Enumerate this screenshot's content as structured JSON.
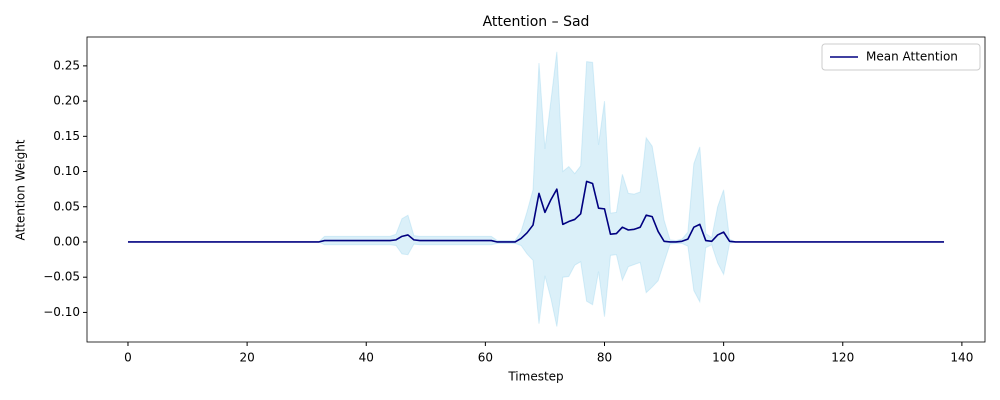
{
  "chart_data": {
    "type": "line",
    "title": "Attention – Sad",
    "x_label": "Timestep",
    "y_label": "Attention Weight",
    "x": [
      0,
      1,
      2,
      3,
      4,
      5,
      6,
      7,
      8,
      9,
      10,
      11,
      12,
      13,
      14,
      15,
      16,
      17,
      18,
      19,
      20,
      21,
      22,
      23,
      24,
      25,
      26,
      27,
      28,
      29,
      30,
      31,
      32,
      33,
      34,
      35,
      36,
      37,
      38,
      39,
      40,
      41,
      42,
      43,
      44,
      45,
      46,
      47,
      48,
      49,
      50,
      51,
      52,
      53,
      54,
      55,
      56,
      57,
      58,
      59,
      60,
      61,
      62,
      63,
      64,
      65,
      66,
      67,
      68,
      69,
      70,
      71,
      72,
      73,
      74,
      75,
      76,
      77,
      78,
      79,
      80,
      81,
      82,
      83,
      84,
      85,
      86,
      87,
      88,
      89,
      90,
      91,
      92,
      93,
      94,
      95,
      96,
      97,
      98,
      99,
      100,
      101,
      102,
      103,
      104,
      105,
      106,
      107,
      108,
      109,
      110,
      111,
      112,
      113,
      114,
      115,
      116,
      117,
      118,
      119,
      120,
      121,
      122,
      123,
      124,
      125,
      126,
      127,
      128,
      129,
      130,
      131,
      132,
      133,
      134,
      135,
      136,
      137
    ],
    "series": [
      {
        "name": "Mean Attention",
        "color": "#000080",
        "values": [
          0,
          0,
          0,
          0,
          0,
          0,
          0,
          0,
          0,
          0,
          0,
          0,
          0,
          0,
          0,
          0,
          0,
          0,
          0,
          0,
          0,
          0,
          0,
          0,
          0,
          0,
          0,
          0,
          0,
          0,
          0,
          0,
          0,
          0.002,
          0.002,
          0.002,
          0.002,
          0.002,
          0.002,
          0.002,
          0.002,
          0.002,
          0.002,
          0.002,
          0.002,
          0.003,
          0.008,
          0.01,
          0.003,
          0.002,
          0.002,
          0.002,
          0.002,
          0.002,
          0.002,
          0.002,
          0.002,
          0.002,
          0.002,
          0.002,
          0.002,
          0.002,
          0,
          0,
          0,
          0,
          0.005,
          0.013,
          0.024,
          0.069,
          0.042,
          0.06,
          0.075,
          0.025,
          0.029,
          0.032,
          0.04,
          0.086,
          0.083,
          0.048,
          0.047,
          0.011,
          0.012,
          0.021,
          0.017,
          0.018,
          0.021,
          0.038,
          0.036,
          0.015,
          0.001,
          0,
          0,
          0.001,
          0.004,
          0.021,
          0.025,
          0.002,
          0.001,
          0.01,
          0.014,
          0.001,
          0,
          0,
          0,
          0,
          0,
          0,
          0,
          0,
          0,
          0,
          0,
          0,
          0,
          0,
          0,
          0,
          0,
          0,
          0,
          0,
          0,
          0,
          0,
          0,
          0,
          0,
          0,
          0,
          0,
          0,
          0,
          0,
          0,
          0,
          0,
          0
        ]
      }
    ],
    "band": {
      "color": "#87ceeb",
      "opacity": 0.3,
      "values": [
        0,
        0,
        0,
        0,
        0,
        0,
        0,
        0,
        0,
        0,
        0,
        0,
        0,
        0,
        0,
        0,
        0,
        0,
        0,
        0,
        0,
        0,
        0,
        0,
        0,
        0,
        0,
        0,
        0,
        0,
        0,
        0,
        0,
        0.006,
        0.006,
        0.006,
        0.006,
        0.006,
        0.006,
        0.006,
        0.006,
        0.006,
        0.006,
        0.006,
        0.006,
        0.008,
        0.025,
        0.028,
        0.006,
        0.006,
        0.006,
        0.006,
        0.006,
        0.006,
        0.006,
        0.006,
        0.006,
        0.006,
        0.006,
        0.006,
        0.006,
        0.006,
        0.002,
        0.002,
        0.002,
        0.002,
        0.01,
        0.03,
        0.05,
        0.185,
        0.09,
        0.14,
        0.195,
        0.075,
        0.078,
        0.065,
        0.068,
        0.17,
        0.172,
        0.09,
        0.153,
        0.03,
        0.03,
        0.075,
        0.052,
        0.05,
        0.05,
        0.11,
        0.1,
        0.07,
        0.03,
        0.003,
        0.002,
        0.003,
        0.01,
        0.09,
        0.11,
        0.01,
        0.005,
        0.04,
        0.06,
        0.003,
        0,
        0,
        0,
        0,
        0,
        0,
        0,
        0,
        0,
        0,
        0,
        0,
        0,
        0,
        0,
        0,
        0,
        0,
        0,
        0,
        0,
        0,
        0,
        0,
        0,
        0,
        0,
        0,
        0,
        0,
        0,
        0,
        0,
        0,
        0,
        0
      ]
    },
    "xlim": [
      -6.88,
      143.88
    ],
    "xticks": [
      0,
      20,
      40,
      60,
      80,
      100,
      120,
      140
    ],
    "ylim": [
      -0.142,
      0.291
    ],
    "yticks": [
      {
        "value": -0.1,
        "label": "−0.10"
      },
      {
        "value": -0.05,
        "label": "−0.05"
      },
      {
        "value": 0,
        "label": "0.00"
      },
      {
        "value": 0.05,
        "label": "0.05"
      },
      {
        "value": 0.1,
        "label": "0.10"
      },
      {
        "value": 0.15,
        "label": "0.15"
      },
      {
        "value": 0.2,
        "label": "0.20"
      },
      {
        "value": 0.25,
        "label": "0.25"
      }
    ],
    "legend": "upper right",
    "grid": false
  }
}
